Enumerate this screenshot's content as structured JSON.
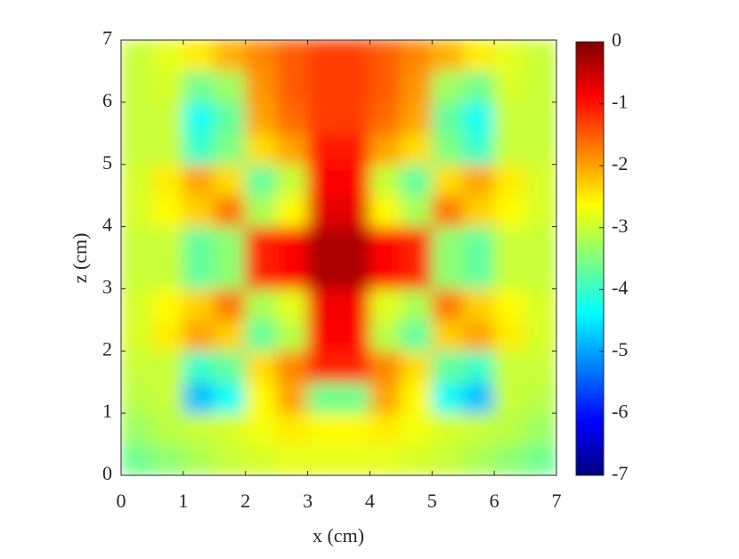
{
  "chart_data": {
    "type": "heatmap",
    "xlabel": "x (cm)",
    "ylabel": "z (cm)",
    "xlim": [
      0,
      7
    ],
    "ylim": [
      0,
      7
    ],
    "xticks": [
      0,
      1,
      2,
      3,
      4,
      5,
      6,
      7
    ],
    "yticks": [
      0,
      1,
      2,
      3,
      4,
      5,
      6,
      7
    ],
    "colormap": "jet",
    "clim": [
      -7,
      0
    ],
    "cticks": [
      0,
      -1,
      -2,
      -3,
      -4,
      -5,
      -6,
      -7
    ],
    "x": [
      0.25,
      0.75,
      1.25,
      1.75,
      2.25,
      2.75,
      3.25,
      3.75,
      4.25,
      4.75,
      5.25,
      5.75,
      6.25,
      6.75
    ],
    "y": [
      0.25,
      0.75,
      1.25,
      1.75,
      2.25,
      2.75,
      3.25,
      3.75,
      4.25,
      4.75,
      5.25,
      5.75,
      6.25,
      6.75
    ],
    "values": [
      [
        -3.6,
        -3.4,
        -3.2,
        -3.0,
        -2.9,
        -2.8,
        -2.8,
        -2.8,
        -2.8,
        -2.9,
        -3.0,
        -3.2,
        -3.4,
        -3.6
      ],
      [
        -3.3,
        -3.1,
        -3.0,
        -2.9,
        -2.7,
        -2.5,
        -2.6,
        -2.6,
        -2.5,
        -2.7,
        -2.9,
        -3.0,
        -3.1,
        -3.3
      ],
      [
        -3.1,
        -3.0,
        -4.8,
        -4.3,
        -2.6,
        -2.0,
        -3.6,
        -3.6,
        -2.0,
        -2.6,
        -4.3,
        -4.8,
        -3.0,
        -3.1
      ],
      [
        -3.0,
        -3.0,
        -4.0,
        -3.7,
        -2.4,
        -1.8,
        -1.1,
        -1.1,
        -1.8,
        -2.4,
        -3.7,
        -4.0,
        -3.0,
        -3.0
      ],
      [
        -2.9,
        -2.5,
        -2.0,
        -2.3,
        -3.7,
        -3.1,
        -0.9,
        -0.9,
        -3.1,
        -3.7,
        -2.3,
        -2.0,
        -2.5,
        -2.9
      ],
      [
        -2.9,
        -2.6,
        -2.3,
        -1.7,
        -3.2,
        -2.8,
        -0.8,
        -0.8,
        -2.8,
        -3.2,
        -1.7,
        -2.3,
        -2.6,
        -2.9
      ],
      [
        -3.0,
        -3.0,
        -3.7,
        -3.4,
        -1.1,
        -0.9,
        -0.3,
        -0.3,
        -0.9,
        -1.1,
        -3.4,
        -3.7,
        -3.0,
        -3.0
      ],
      [
        -3.0,
        -3.0,
        -3.7,
        -3.4,
        -1.1,
        -0.9,
        -0.3,
        -0.3,
        -0.9,
        -1.1,
        -3.4,
        -3.7,
        -3.0,
        -3.0
      ],
      [
        -2.9,
        -2.6,
        -2.3,
        -1.7,
        -3.2,
        -2.6,
        -0.7,
        -0.7,
        -2.6,
        -3.2,
        -1.7,
        -2.3,
        -2.6,
        -2.9
      ],
      [
        -2.9,
        -2.5,
        -2.0,
        -2.4,
        -3.7,
        -3.0,
        -0.9,
        -0.9,
        -3.0,
        -3.7,
        -2.4,
        -2.0,
        -2.5,
        -2.9
      ],
      [
        -3.0,
        -3.0,
        -4.0,
        -3.5,
        -2.4,
        -2.0,
        -1.0,
        -1.0,
        -2.0,
        -2.4,
        -3.5,
        -4.0,
        -3.0,
        -3.0
      ],
      [
        -3.0,
        -3.0,
        -4.3,
        -3.7,
        -2.0,
        -1.6,
        -1.3,
        -1.3,
        -1.6,
        -2.0,
        -3.7,
        -4.3,
        -3.0,
        -3.0
      ],
      [
        -3.0,
        -2.9,
        -3.6,
        -3.3,
        -1.9,
        -1.5,
        -1.3,
        -1.3,
        -1.5,
        -1.9,
        -3.3,
        -3.6,
        -2.9,
        -3.0
      ],
      [
        -3.0,
        -2.8,
        -2.5,
        -2.1,
        -1.8,
        -1.5,
        -1.3,
        -1.3,
        -1.5,
        -1.8,
        -2.1,
        -2.5,
        -2.8,
        -3.0
      ]
    ]
  }
}
